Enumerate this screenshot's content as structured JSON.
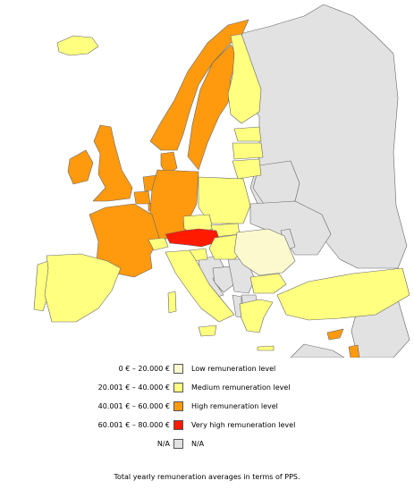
{
  "colors": {
    "low": "#fdf9cf",
    "medium": "#ffff80",
    "high": "#ff9a0f",
    "very_high": "#ff1a00",
    "na": "#e2e2e2",
    "border": "#666666"
  },
  "legend": [
    {
      "range": "0 € – 20.000 €",
      "label": "Low remuneration level",
      "color_key": "low"
    },
    {
      "range": "20.001 € – 40.000 €",
      "label": "Medium remuneration level",
      "color_key": "medium"
    },
    {
      "range": "40.001 € – 60.000 €",
      "label": "High remuneration level",
      "color_key": "high"
    },
    {
      "range": "60.001 € – 80.000 €",
      "label": "Very high remuneration level",
      "color_key": "very_high"
    },
    {
      "range": "N/A",
      "label": "N/A",
      "color_key": "na"
    }
  ],
  "caption": "Total yearly remuneration averages in terms of PPS.",
  "regions": [
    {
      "name": "iceland",
      "level": "medium"
    },
    {
      "name": "ireland",
      "level": "high"
    },
    {
      "name": "united-kingdom",
      "level": "high"
    },
    {
      "name": "norway",
      "level": "high"
    },
    {
      "name": "sweden",
      "level": "high"
    },
    {
      "name": "finland",
      "level": "medium"
    },
    {
      "name": "estonia",
      "level": "medium"
    },
    {
      "name": "latvia",
      "level": "medium"
    },
    {
      "name": "lithuania",
      "level": "medium"
    },
    {
      "name": "denmark",
      "level": "high"
    },
    {
      "name": "netherlands",
      "level": "high"
    },
    {
      "name": "belgium",
      "level": "high"
    },
    {
      "name": "luxembourg",
      "level": "high"
    },
    {
      "name": "germany",
      "level": "high"
    },
    {
      "name": "poland",
      "level": "medium"
    },
    {
      "name": "france",
      "level": "high"
    },
    {
      "name": "czech-republic",
      "level": "medium"
    },
    {
      "name": "slovakia",
      "level": "medium"
    },
    {
      "name": "austria",
      "level": "very_high"
    },
    {
      "name": "switzerland",
      "level": "medium"
    },
    {
      "name": "hungary",
      "level": "medium"
    },
    {
      "name": "romania",
      "level": "low"
    },
    {
      "name": "slovenia",
      "level": "medium"
    },
    {
      "name": "italy",
      "level": "medium"
    },
    {
      "name": "portugal",
      "level": "medium"
    },
    {
      "name": "spain",
      "level": "medium"
    },
    {
      "name": "croatia",
      "level": "na"
    },
    {
      "name": "bosnia",
      "level": "na"
    },
    {
      "name": "serbia",
      "level": "na"
    },
    {
      "name": "albania",
      "level": "na"
    },
    {
      "name": "macedonia",
      "level": "na"
    },
    {
      "name": "bulgaria",
      "level": "medium"
    },
    {
      "name": "greece",
      "level": "medium"
    },
    {
      "name": "turkey",
      "level": "medium"
    },
    {
      "name": "cyprus",
      "level": "high"
    },
    {
      "name": "israel",
      "level": "high"
    },
    {
      "name": "russia",
      "level": "na"
    },
    {
      "name": "belarus",
      "level": "na"
    },
    {
      "name": "ukraine",
      "level": "na"
    },
    {
      "name": "moldova",
      "level": "na"
    },
    {
      "name": "middle-east",
      "level": "na"
    },
    {
      "name": "north-africa",
      "level": "na"
    }
  ]
}
